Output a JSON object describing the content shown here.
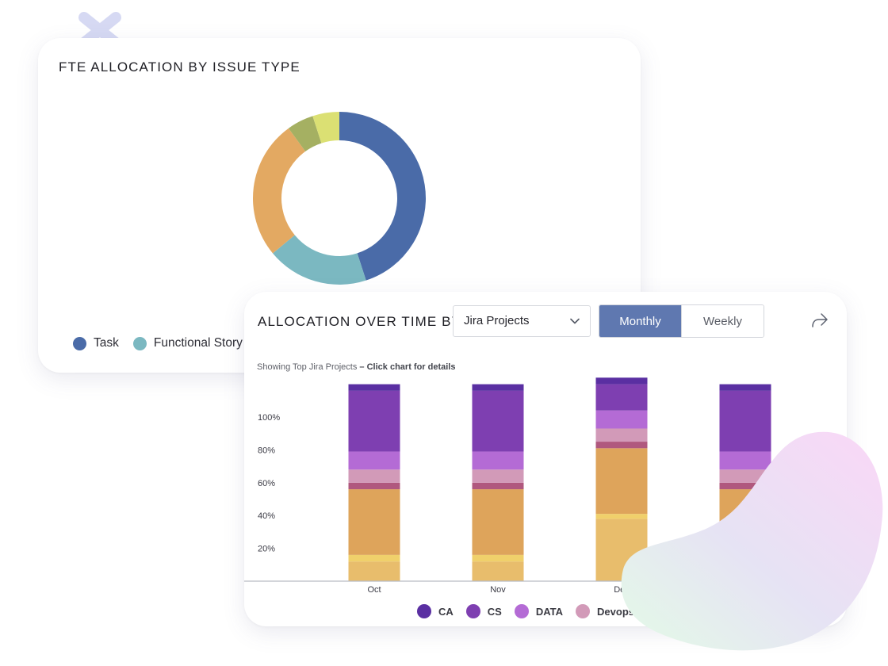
{
  "card1": {
    "title": "FTE ALLOCATION BY ISSUE TYPE",
    "legend": [
      {
        "label": "Task",
        "color": "#4a6ba8"
      },
      {
        "label": "Functional Story",
        "color": "#7bb8c1"
      }
    ]
  },
  "card2": {
    "title": "ALLOCATION OVER TIME BY",
    "dropdown_value": "Jira Projects",
    "toggle": {
      "monthly": "Monthly",
      "weekly": "Weekly",
      "selected": "Monthly"
    },
    "share_icon": "share-icon",
    "subtitle_prefix": "Showing Top Jira Projects",
    "subtitle_sep": " – ",
    "subtitle_action": "Click chart for details",
    "legend": [
      {
        "label": "CA",
        "color": "#5a2fa2"
      },
      {
        "label": "CS",
        "color": "#7e3fb1"
      },
      {
        "label": "DATA",
        "color": "#b46bd5"
      },
      {
        "label": "Devops",
        "color": "#d29ab8"
      }
    ]
  },
  "chart_data": [
    {
      "type": "pie",
      "title": "FTE ALLOCATION BY ISSUE TYPE",
      "donut": true,
      "slices": [
        {
          "label": "Task",
          "value": 45,
          "color": "#4a6ba8"
        },
        {
          "label": "Functional Story",
          "value": 19,
          "color": "#7bb8c1"
        },
        {
          "label": "",
          "value": 26,
          "color": "#e3a962"
        },
        {
          "label": "",
          "value": 5,
          "color": "#a5b062"
        },
        {
          "label": "",
          "value": 5,
          "color": "#dbe073"
        }
      ]
    },
    {
      "type": "bar",
      "stacked": true,
      "title": "ALLOCATION OVER TIME BY",
      "categories": [
        "Oct",
        "Nov",
        "Dec",
        ""
      ],
      "yticks": [
        "20%",
        "40%",
        "60%",
        "80%",
        "100%"
      ],
      "ylim": [
        0,
        120
      ],
      "series": [
        {
          "name": "",
          "color": "#e8bd6c",
          "values": [
            12,
            12,
            38,
            12
          ]
        },
        {
          "name": "",
          "color": "#f0d06b",
          "values": [
            4,
            4,
            3,
            4
          ]
        },
        {
          "name": "",
          "color": "#dea45b",
          "values": [
            40,
            40,
            40,
            40
          ]
        },
        {
          "name": "",
          "color": "#b0587e",
          "values": [
            4,
            4,
            4,
            4
          ]
        },
        {
          "name": "Devops",
          "color": "#d29ab8",
          "values": [
            8,
            8,
            8,
            8
          ]
        },
        {
          "name": "DATA",
          "color": "#b46bd5",
          "values": [
            11,
            11,
            11,
            11
          ]
        },
        {
          "name": "CS",
          "color": "#7e3fb1",
          "values": [
            37,
            37,
            16,
            37
          ]
        },
        {
          "name": "CA",
          "color": "#5a2fa2",
          "values": [
            4,
            4,
            4,
            4
          ]
        }
      ]
    }
  ]
}
